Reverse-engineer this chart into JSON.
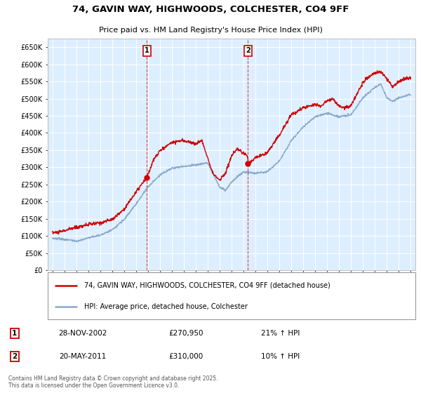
{
  "title_line1": "74, GAVIN WAY, HIGHWOODS, COLCHESTER, CO4 9FF",
  "title_line2": "Price paid vs. HM Land Registry's House Price Index (HPI)",
  "ylabel_ticks": [
    "£0",
    "£50K",
    "£100K",
    "£150K",
    "£200K",
    "£250K",
    "£300K",
    "£350K",
    "£400K",
    "£450K",
    "£500K",
    "£550K",
    "£600K",
    "£650K"
  ],
  "ylim": [
    0,
    675000
  ],
  "ytick_values": [
    0,
    50000,
    100000,
    150000,
    200000,
    250000,
    300000,
    350000,
    400000,
    450000,
    500000,
    550000,
    600000,
    650000
  ],
  "xlim_start": 1994.6,
  "xlim_end": 2025.4,
  "xtick_years": [
    1995,
    1996,
    1997,
    1998,
    1999,
    2000,
    2001,
    2002,
    2003,
    2004,
    2005,
    2006,
    2007,
    2008,
    2009,
    2010,
    2011,
    2012,
    2013,
    2014,
    2015,
    2016,
    2017,
    2018,
    2019,
    2020,
    2021,
    2022,
    2023,
    2024,
    2025
  ],
  "sale1_x": 2002.91,
  "sale1_y": 270950,
  "sale1_label": "1",
  "sale2_x": 2011.38,
  "sale2_y": 310000,
  "sale2_label": "2",
  "line1_color": "#cc0000",
  "line2_color": "#88aacc",
  "background_color": "#ddeeff",
  "plot_bg": "#ddeeff",
  "grid_color": "#ffffff",
  "annotation_box_color": "#cc0000",
  "legend_label1": "74, GAVIN WAY, HIGHWOODS, COLCHESTER, CO4 9FF (detached house)",
  "legend_label2": "HPI: Average price, detached house, Colchester",
  "table_rows": [
    {
      "num": "1",
      "date": "28-NOV-2002",
      "price": "£270,950",
      "hpi": "21% ↑ HPI"
    },
    {
      "num": "2",
      "date": "20-MAY-2011",
      "price": "£310,000",
      "hpi": "10% ↑ HPI"
    }
  ],
  "footer": "Contains HM Land Registry data © Crown copyright and database right 2025.\nThis data is licensed under the Open Government Licence v3.0."
}
